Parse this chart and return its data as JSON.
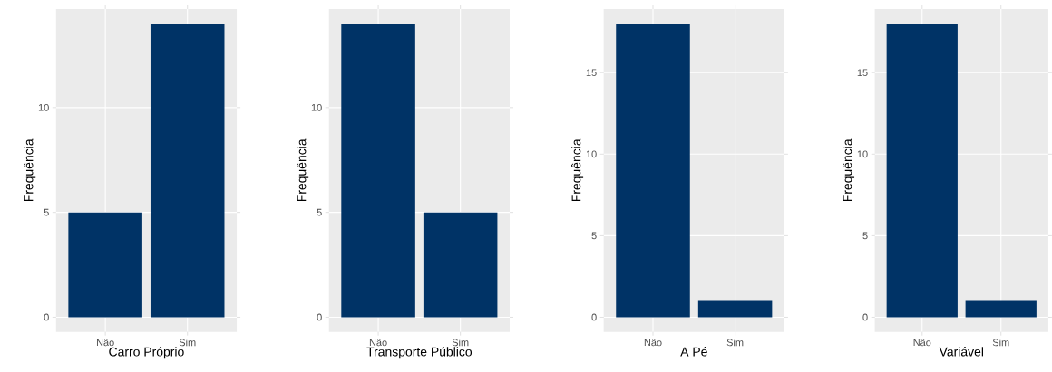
{
  "chart_data": [
    {
      "type": "bar",
      "categories": [
        "Não",
        "Sim"
      ],
      "values": [
        5,
        14
      ],
      "color": "#003366",
      "xlabel": "Carro Próprio",
      "ylabel": "Frequência",
      "ylim": [
        -0.7,
        14.7
      ],
      "yticks": [
        0,
        5,
        10
      ],
      "grid": true
    },
    {
      "type": "bar",
      "categories": [
        "Não",
        "Sim"
      ],
      "values": [
        14,
        5
      ],
      "color": "#003366",
      "xlabel": "Transporte Público",
      "ylabel": "Frequência",
      "ylim": [
        -0.7,
        14.7
      ],
      "yticks": [
        0,
        5,
        10
      ],
      "grid": true
    },
    {
      "type": "bar",
      "categories": [
        "Não",
        "Sim"
      ],
      "values": [
        18,
        1
      ],
      "color": "#003366",
      "xlabel": "A Pé",
      "ylabel": "Frequência",
      "ylim": [
        -0.9,
        18.9
      ],
      "yticks": [
        0,
        5,
        10,
        15
      ],
      "grid": true
    },
    {
      "type": "bar",
      "categories": [
        "Não",
        "Sim"
      ],
      "values": [
        18,
        1
      ],
      "color": "#003366",
      "xlabel": "Variável",
      "ylabel": "Frequência",
      "ylim": [
        -0.9,
        18.9
      ],
      "yticks": [
        0,
        5,
        10,
        15
      ],
      "grid": true
    }
  ]
}
